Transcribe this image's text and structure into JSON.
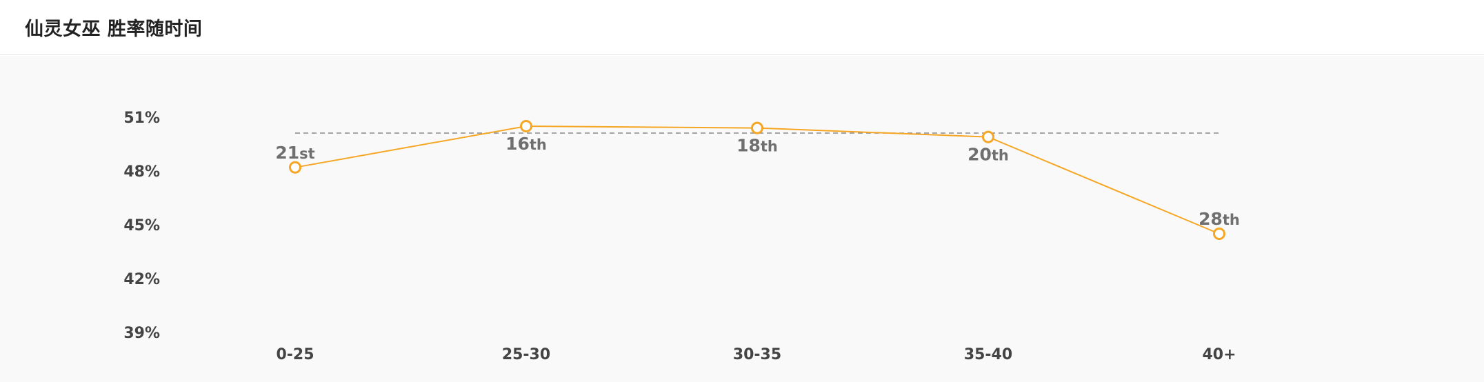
{
  "header": {
    "title": "仙灵女巫 胜率随时间"
  },
  "chart_data": {
    "type": "line",
    "title": "仙灵女巫 胜率随时间",
    "xlabel": "",
    "ylabel": "",
    "categories": [
      "0-25",
      "25-30",
      "30-35",
      "35-40",
      "40+"
    ],
    "values": [
      48.2,
      50.5,
      50.4,
      49.9,
      44.5
    ],
    "data_labels": [
      {
        "num": "21",
        "suffix": "st"
      },
      {
        "num": "16",
        "suffix": "th"
      },
      {
        "num": "18",
        "suffix": "th"
      },
      {
        "num": "20",
        "suffix": "th"
      },
      {
        "num": "28",
        "suffix": "th"
      }
    ],
    "y_ticks": [
      {
        "value": 51,
        "label": "51%"
      },
      {
        "value": 48,
        "label": "48%"
      },
      {
        "value": 45,
        "label": "45%"
      },
      {
        "value": 42,
        "label": "42%"
      },
      {
        "value": 39,
        "label": "39%"
      }
    ],
    "ylim": [
      39,
      51
    ],
    "reference_line": 50,
    "grid": false,
    "colors": {
      "line": "#f5a623",
      "marker_fill": "#ffffff",
      "reference": "#888888",
      "tick_text": "#444444",
      "rank_text": "#6f6f6f"
    }
  }
}
